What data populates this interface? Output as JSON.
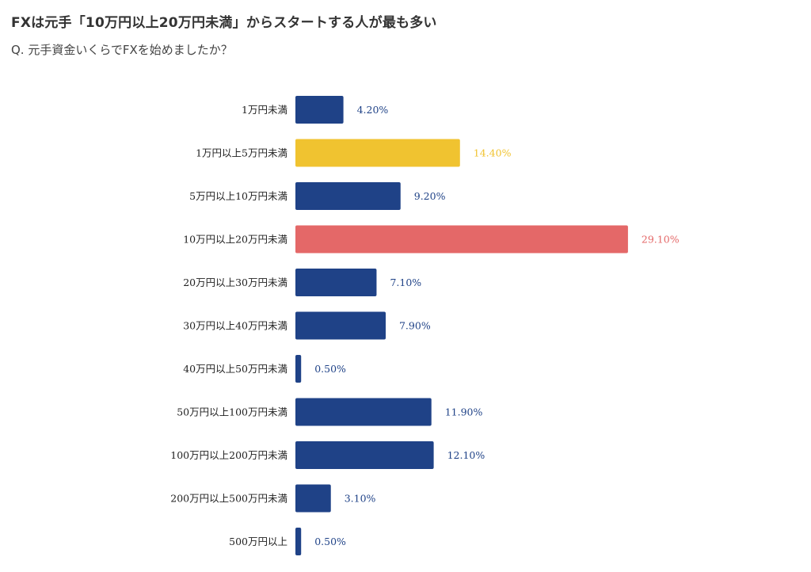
{
  "header": {
    "title": "FXは元手「10万円以上20万円未満」からスタートする人が最も多い",
    "subtitle": "Q. 元手資金いくらでFXを始めましたか？"
  },
  "colors": {
    "default_bar": "#1f4287",
    "highlight_yellow": "#f0c330",
    "highlight_red": "#e46868"
  },
  "chart_data": {
    "type": "bar",
    "orientation": "horizontal",
    "title": "",
    "xlabel": "",
    "ylabel": "",
    "xlim": [
      0,
      30
    ],
    "grid": false,
    "categories": [
      "1万円未満",
      "1万円以上5万円未満",
      "5万円以上10万円未満",
      "10万円以上20万円未満",
      "20万円以上30万円未満",
      "30万円以上40万円未満",
      "40万円以上50万円未満",
      "50万円以上100万円未満",
      "100万円以上200万円未満",
      "200万円以上500万円未満",
      "500万円以上"
    ],
    "values": [
      4.2,
      14.4,
      9.2,
      29.1,
      7.1,
      7.9,
      0.5,
      11.9,
      12.1,
      3.1,
      0.5
    ],
    "value_labels": [
      "4.20%",
      "14.40%",
      "9.20%",
      "29.10%",
      "7.10%",
      "7.90%",
      "0.50%",
      "11.90%",
      "12.10%",
      "3.10%",
      "0.50%"
    ],
    "bar_colors": [
      "#1f4287",
      "#f0c330",
      "#1f4287",
      "#e46868",
      "#1f4287",
      "#1f4287",
      "#1f4287",
      "#1f4287",
      "#1f4287",
      "#1f4287",
      "#1f4287"
    ]
  }
}
